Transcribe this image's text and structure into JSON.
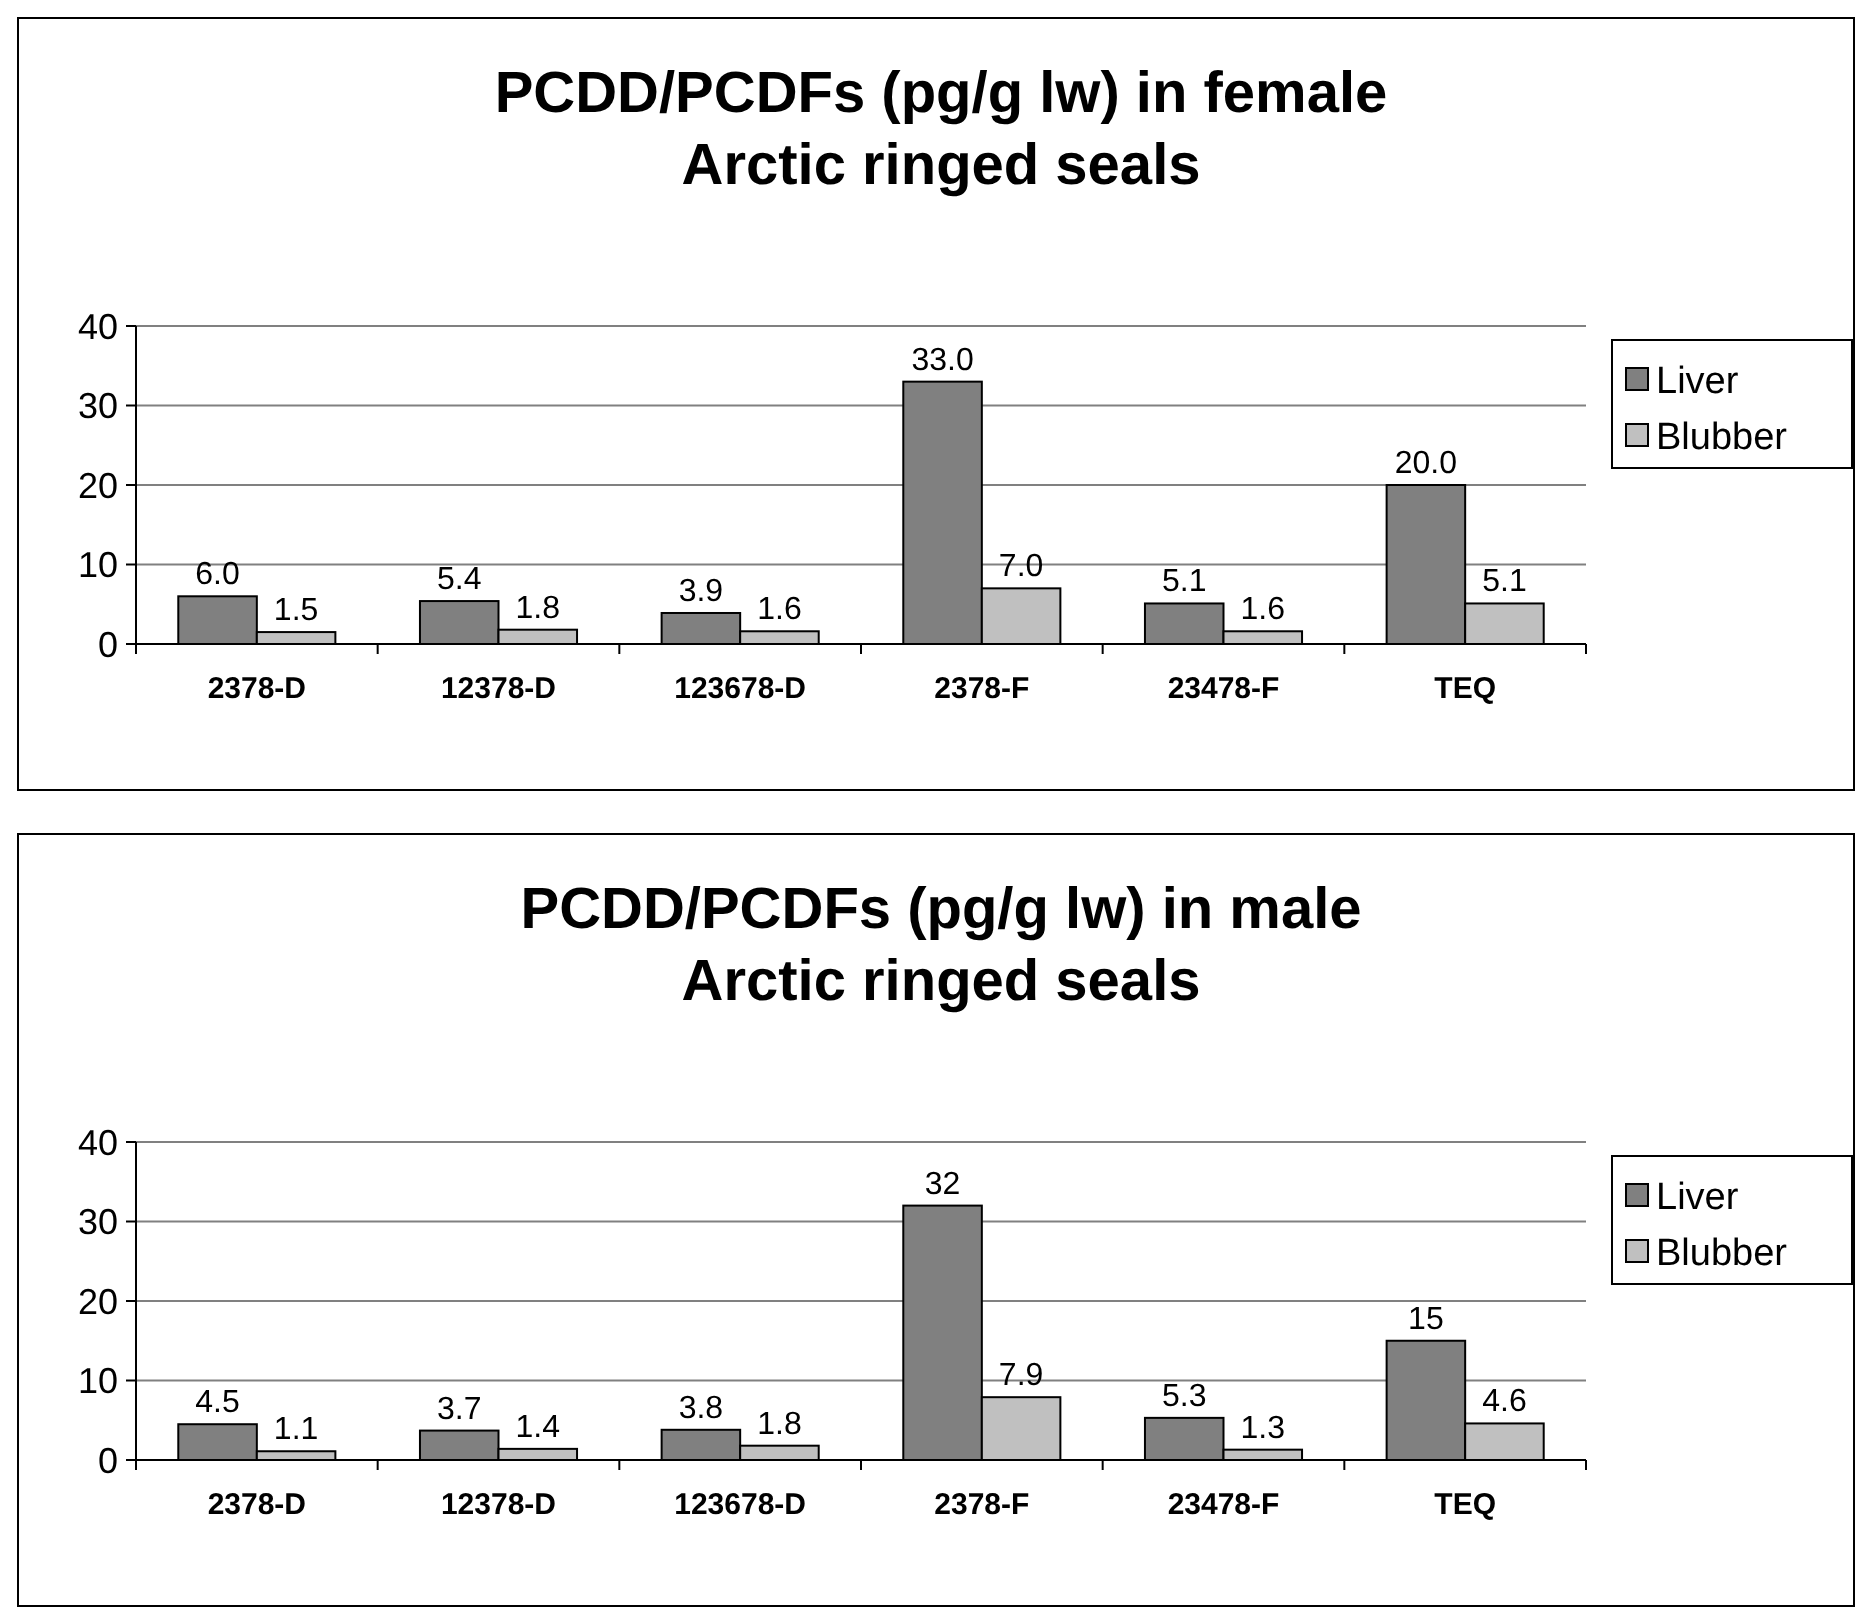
{
  "chart_data": [
    {
      "type": "bar",
      "title": "PCDD/PCDFs (pg/g lw) in female\nArctic ringed seals",
      "categories": [
        "2378-D",
        "12378-D",
        "123678-D",
        "2378-F",
        "23478-F",
        "TEQ"
      ],
      "ylim": [
        0,
        40
      ],
      "yticks": [
        0,
        10,
        20,
        30,
        40
      ],
      "grid": "y",
      "legend": "right",
      "series": [
        {
          "name": "Liver",
          "color": "#808080",
          "values": [
            6.0,
            5.4,
            3.9,
            33.0,
            5.1,
            20.0
          ],
          "value_labels": [
            "6.0",
            "5.4",
            "3.9",
            "33.0",
            "5.1",
            "20.0"
          ]
        },
        {
          "name": "Blubber",
          "color": "#c0c0c0",
          "values": [
            1.5,
            1.8,
            1.6,
            7.0,
            1.6,
            5.1
          ],
          "value_labels": [
            "1.5",
            "1.8",
            "1.6",
            "7.0",
            "1.6",
            "5.1"
          ]
        }
      ]
    },
    {
      "type": "bar",
      "title": "PCDD/PCDFs (pg/g lw) in male\nArctic ringed seals",
      "categories": [
        "2378-D",
        "12378-D",
        "123678-D",
        "2378-F",
        "23478-F",
        "TEQ"
      ],
      "ylim": [
        0,
        40
      ],
      "yticks": [
        0,
        10,
        20,
        30,
        40
      ],
      "grid": "y",
      "legend": "right",
      "series": [
        {
          "name": "Liver",
          "color": "#808080",
          "values": [
            4.5,
            3.7,
            3.8,
            32,
            5.3,
            15
          ],
          "value_labels": [
            "4.5",
            "3.7",
            "3.8",
            "32",
            "5.3",
            "15"
          ]
        },
        {
          "name": "Blubber",
          "color": "#c0c0c0",
          "values": [
            1.1,
            1.4,
            1.8,
            7.9,
            1.3,
            4.6
          ],
          "value_labels": [
            "1.1",
            "1.4",
            "1.8",
            "7.9",
            "1.3",
            "4.6"
          ]
        }
      ]
    }
  ]
}
